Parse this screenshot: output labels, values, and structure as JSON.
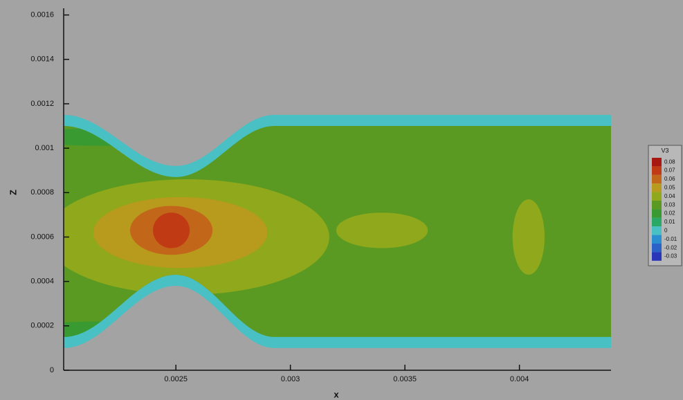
{
  "chart_data": {
    "type": "contour",
    "x_label": "x",
    "y_label": "Z",
    "xlim": [
      0.00201,
      0.0044
    ],
    "ylim": [
      0,
      0.00163
    ],
    "xticks": [
      0.0025,
      0.003,
      0.0035,
      0.004
    ],
    "yticks": [
      0,
      0.0002,
      0.0004,
      0.0006,
      0.0008,
      0.001,
      0.0012,
      0.0014,
      0.0016
    ],
    "legend": {
      "title": "V3",
      "position": "right",
      "levels": [
        0.08,
        0.07,
        0.06,
        0.05,
        0.04,
        0.03,
        0.02,
        0.01,
        0,
        -0.01,
        -0.02,
        -0.03
      ],
      "colors": [
        "#a81812",
        "#c03a14",
        "#c2661a",
        "#b89a1c",
        "#8fa81c",
        "#5a9a22",
        "#3a9a32",
        "#2aa866",
        "#48c0c4",
        "#2a8ed0",
        "#2a62c8",
        "#2a36b8"
      ]
    }
  }
}
